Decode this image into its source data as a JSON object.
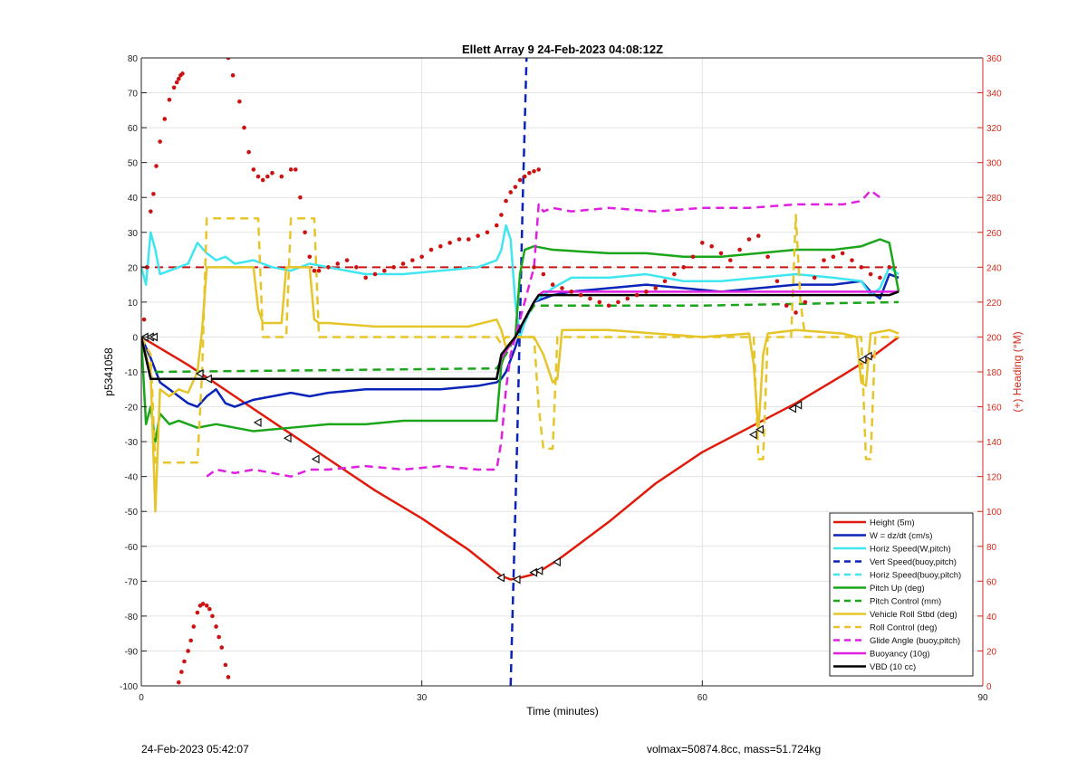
{
  "chart_data": {
    "type": "line",
    "title": "Ellett Array 9 24-Feb-2023 04:08:12Z",
    "xlabel": "Time (minutes)",
    "ylabel_left": "p5341058",
    "ylabel_right": "(+) Heading (°M)",
    "xlim": [
      0,
      90
    ],
    "ylim_left": [
      -100,
      80
    ],
    "ylim_right": [
      0,
      360
    ],
    "x_ticks": [
      0,
      30,
      60,
      90
    ],
    "y_ticks_left": [
      80,
      70,
      60,
      50,
      40,
      30,
      20,
      10,
      0,
      -10,
      -20,
      -30,
      -40,
      -50,
      -60,
      -70,
      -80,
      -90,
      -100
    ],
    "y_ticks_right": [
      360,
      340,
      320,
      300,
      280,
      260,
      240,
      220,
      200,
      180,
      160,
      140,
      120,
      100,
      80,
      60,
      40,
      20,
      0
    ],
    "grid": true,
    "legend_position": "bottom-right",
    "colors": {
      "red": "#e01b0b",
      "blue": "#0a23b8",
      "cyan": "#3fe6f0",
      "green": "#1aa51a",
      "yellow": "#e5c52a",
      "magenta": "#e020e0",
      "black": "#000000",
      "heading": "#cc1111"
    },
    "series": [
      {
        "name": "Height (5m)",
        "color": "#e01b0b",
        "style": "solid",
        "x": [
          0,
          5,
          10,
          15,
          20,
          25,
          30,
          35,
          38.5,
          39.5,
          40.5,
          42,
          43,
          44.5,
          50,
          55,
          60,
          65,
          70,
          75,
          78,
          81
        ],
        "y": [
          0,
          -8,
          -17,
          -26,
          -35,
          -44,
          -52,
          -61,
          -68.5,
          -69.5,
          -69,
          -68,
          -66.5,
          -64,
          -53,
          -42,
          -33,
          -26,
          -19,
          -11,
          -6,
          0
        ]
      },
      {
        "name": "W = dz/dt (cm/s)",
        "color": "#0a23b8",
        "style": "solid",
        "x": [
          0,
          1,
          2,
          3,
          4,
          5,
          6,
          7,
          8,
          9,
          10,
          12,
          14,
          16,
          18,
          20,
          24,
          28,
          32,
          36,
          38,
          38.5,
          39,
          40,
          41,
          42,
          44,
          46,
          50,
          54,
          58,
          62,
          66,
          70,
          74,
          77,
          78,
          79,
          80,
          81
        ],
        "y": [
          0,
          -6,
          -13,
          -15,
          -17,
          -19,
          -20,
          -17,
          -15,
          -19,
          -20,
          -18,
          -17,
          -16,
          -17,
          -16,
          -15,
          -15,
          -15,
          -14,
          -13,
          -12,
          -10,
          -3,
          5,
          10,
          12,
          13,
          14,
          15,
          14,
          13,
          14,
          15,
          15,
          16,
          13,
          11,
          18,
          17
        ]
      },
      {
        "name": "Horiz Speed(W,pitch)",
        "color": "#3fe6f0",
        "style": "solid",
        "x": [
          0,
          0.5,
          1,
          1.5,
          2,
          3,
          4,
          5,
          6,
          7,
          8,
          9,
          10,
          12,
          14,
          16,
          18,
          20,
          24,
          28,
          32,
          36,
          38,
          38.5,
          39,
          39.5,
          40,
          40.5,
          41,
          42,
          44,
          46,
          50,
          54,
          58,
          62,
          66,
          70,
          74,
          77,
          78,
          79,
          80,
          81
        ],
        "y": [
          20,
          15,
          30,
          25,
          18,
          19,
          20,
          21,
          27,
          24,
          22,
          23,
          21,
          22,
          20,
          19,
          21,
          20,
          18,
          18,
          19,
          20,
          22,
          25,
          32,
          28,
          10,
          0,
          4,
          10,
          14,
          17,
          17,
          18,
          16,
          16,
          17,
          18,
          17,
          16,
          12,
          14,
          20,
          18
        ]
      },
      {
        "name": "Vert Speed(buoy,pitch)",
        "color": "#0a23b8",
        "style": "dash",
        "x": [
          39.5,
          40.2,
          40.8,
          41.2
        ],
        "y": [
          -100,
          -30,
          40,
          80
        ]
      },
      {
        "name": "Horiz Speed(buoy,pitch)",
        "color": "#3fe6f0",
        "style": "dash",
        "x": [],
        "y": []
      },
      {
        "name": "Pitch Up (deg)",
        "color": "#1aa51a",
        "style": "solid",
        "x": [
          0,
          0.5,
          1,
          1.5,
          2,
          3,
          4,
          6,
          8,
          10,
          12,
          16,
          20,
          24,
          28,
          32,
          36,
          38,
          38.5,
          39,
          39.5,
          40,
          40.5,
          41,
          42,
          44,
          50,
          54,
          58,
          62,
          66,
          70,
          74,
          77,
          78,
          79,
          80,
          81
        ],
        "y": [
          0,
          -25,
          -20,
          -30,
          -22,
          -25,
          -24,
          -26,
          -25,
          -26,
          -27,
          -26,
          -25,
          -25,
          -24,
          -24,
          -24,
          -24,
          -8,
          -4,
          -2,
          0,
          18,
          25,
          26,
          25,
          24,
          24,
          23,
          23,
          24,
          25,
          25,
          26,
          27,
          28,
          27,
          13
        ]
      },
      {
        "name": "Pitch Control (mm)",
        "color": "#1aa51a",
        "style": "dash",
        "x": [
          0,
          1,
          2,
          38,
          39,
          40,
          41,
          42,
          60,
          81
        ],
        "y": [
          0,
          -10,
          -10,
          -9,
          -5,
          0,
          5,
          9,
          9,
          10
        ]
      },
      {
        "name": "Vehicle Roll Stbd (deg)",
        "color": "#e5c52a",
        "style": "solid",
        "x": [
          0,
          1,
          1.5,
          2,
          3,
          4,
          5,
          6,
          6.5,
          7,
          8,
          12,
          12.5,
          13,
          15,
          15.5,
          16,
          18,
          18.5,
          19,
          20,
          25,
          30,
          35,
          38,
          38.5,
          39,
          40,
          41,
          42,
          43,
          44,
          44.5,
          45,
          50,
          55,
          60,
          65,
          65.5,
          66,
          66.5,
          67,
          70,
          75,
          76.5,
          77,
          77.5,
          78,
          80,
          81
        ],
        "y": [
          0,
          -10,
          -50,
          -15,
          -17,
          -15,
          -16,
          -10,
          2,
          20,
          20,
          20,
          8,
          4,
          4,
          20,
          20,
          20,
          5,
          4,
          4,
          3,
          3,
          3,
          5,
          2,
          -3,
          0,
          0,
          0,
          -5,
          -13,
          -12,
          2,
          2,
          1,
          0,
          1,
          -8,
          -27,
          -5,
          1,
          2,
          1,
          0,
          -13,
          -14,
          1,
          2,
          1
        ]
      },
      {
        "name": "Roll Control (deg)",
        "color": "#e5c52a",
        "style": "dash",
        "x": [
          0,
          1,
          1.5,
          6,
          6.5,
          7,
          7.5,
          12.5,
          13,
          15.5,
          16,
          18.5,
          19,
          38,
          38.5,
          39,
          42,
          42.5,
          43,
          44,
          44.5,
          45,
          65.5,
          66,
          66.5,
          67,
          69.5,
          70,
          70.5,
          71,
          77,
          77.5,
          78,
          78.5,
          81
        ],
        "y": [
          0,
          -5,
          -36,
          -36,
          -10,
          34,
          34,
          34,
          0,
          0,
          34,
          34,
          0,
          0,
          -2,
          0,
          0,
          -20,
          -32,
          -32,
          0,
          0,
          0,
          -35,
          -35,
          0,
          0,
          35,
          10,
          0,
          0,
          -35,
          -35,
          0,
          0
        ]
      },
      {
        "name": "Glide Angle (buoy,pitch)",
        "color": "#e020e0",
        "style": "dash",
        "x": [
          7,
          8,
          10,
          12,
          14,
          16,
          18,
          20,
          24,
          28,
          32,
          36,
          38,
          38.5,
          39,
          39.5,
          40,
          41,
          42,
          42.5,
          43,
          44,
          46,
          50,
          55,
          60,
          65,
          70,
          75,
          77,
          78,
          79
        ],
        "y": [
          -40,
          -38,
          -39,
          -38,
          -39,
          -40,
          -38,
          -38,
          -37,
          -38,
          -37,
          -38,
          -38,
          -30,
          -15,
          -5,
          0,
          10,
          20,
          38,
          36,
          37,
          36,
          37,
          36,
          37,
          37,
          38,
          38,
          39,
          42,
          40
        ]
      },
      {
        "name": "Buoyancy (10g)",
        "color": "#e020e0",
        "style": "solid",
        "x": [
          0,
          1,
          38,
          38.5,
          40,
          42,
          42.5,
          43,
          60,
          70,
          80,
          81
        ],
        "y": [
          0,
          -12,
          -12,
          -6,
          0,
          10,
          12,
          13,
          13,
          13,
          13,
          13
        ]
      },
      {
        "name": "VBD (10 cc)",
        "color": "#000000",
        "style": "solid",
        "x": [
          0,
          1,
          38,
          38.5,
          40,
          42,
          42.5,
          43,
          60,
          70,
          80,
          81
        ],
        "y": [
          0,
          -12,
          -12,
          -5,
          0,
          10,
          12,
          12,
          12,
          12,
          12,
          13
        ]
      }
    ],
    "heading_series": {
      "name": "(+) Heading (°M)",
      "color": "#cc1111",
      "axis": "right",
      "style": "dotted",
      "segments": [
        {
          "x": [
            0.3,
            0.6,
            1.0,
            1.3,
            1.6,
            2.0,
            2.5,
            3.0,
            3.5,
            3.8,
            4.0,
            4.2,
            4.4
          ],
          "y": [
            210,
            240,
            272,
            282,
            298,
            312,
            325,
            336,
            343,
            346,
            348,
            350,
            351
          ]
        },
        {
          "x": [
            4.0,
            4.3,
            4.6,
            5.0,
            5.3,
            5.6,
            6.0,
            6.3,
            6.6,
            7.0,
            7.3,
            7.6,
            8.0,
            8.3,
            8.6,
            9.0,
            9.3
          ],
          "y": [
            2,
            8,
            14,
            20,
            26,
            34,
            42,
            46,
            47,
            46,
            44,
            40,
            34,
            28,
            22,
            12,
            5
          ]
        },
        {
          "x": [
            9.3,
            9.8,
            10.5,
            11,
            11.5,
            12,
            12.5,
            13,
            13.5,
            14,
            15,
            16,
            16.5,
            17,
            17.5,
            18,
            18.5,
            19,
            20,
            21,
            22,
            23,
            24,
            25,
            26,
            27,
            28,
            29,
            30,
            31,
            32,
            33,
            34,
            35,
            36,
            37,
            38,
            38.5,
            39,
            39.5,
            40,
            40.5,
            41,
            41.5,
            42,
            42.5
          ],
          "y": [
            360,
            350,
            335,
            320,
            306,
            296,
            292,
            290,
            292,
            294,
            292,
            296,
            296,
            280,
            260,
            246,
            238,
            238,
            240,
            242,
            244,
            240,
            234,
            236,
            238,
            240,
            242,
            244,
            246,
            250,
            252,
            254,
            256,
            256,
            258,
            260,
            264,
            270,
            278,
            283,
            286,
            290,
            292,
            294,
            295,
            296
          ]
        },
        {
          "x": [
            42,
            43,
            44,
            45,
            46,
            47,
            48,
            49,
            50,
            51,
            52,
            53,
            54,
            55,
            56,
            57,
            58,
            59,
            60,
            61,
            62,
            63,
            64,
            65,
            66,
            67,
            68,
            69,
            70,
            71,
            72,
            73,
            74,
            75,
            76,
            77,
            78,
            79,
            80
          ],
          "y": [
            240,
            236,
            230,
            228,
            226,
            224,
            222,
            220,
            218,
            220,
            222,
            224,
            226,
            228,
            232,
            236,
            240,
            246,
            254,
            252,
            248,
            244,
            250,
            256,
            258,
            246,
            232,
            218,
            214,
            220,
            234,
            244,
            246,
            248,
            244,
            240,
            236,
            234,
            240
          ]
        }
      ]
    },
    "height_markers": {
      "x": [
        0.4,
        1.0,
        1.4,
        6.3,
        7.2,
        12.5,
        15.7,
        18.7,
        38.5,
        40.2,
        42.0,
        42.6,
        44.5,
        65.5,
        66.2,
        69.7,
        70.3,
        77.2,
        77.8
      ],
      "y": [
        0,
        0,
        0,
        -10.5,
        -12,
        -24.5,
        -29,
        -35,
        -69,
        -69.5,
        -67.5,
        -67,
        -64.5,
        -28,
        -26.5,
        -20.5,
        -19.5,
        -6.5,
        -5.5
      ]
    }
  },
  "footer": {
    "timestamp": "24-Feb-2023 05:42:07",
    "vehicle_info": "volmax=50874.8cc, mass=51.724kg"
  }
}
